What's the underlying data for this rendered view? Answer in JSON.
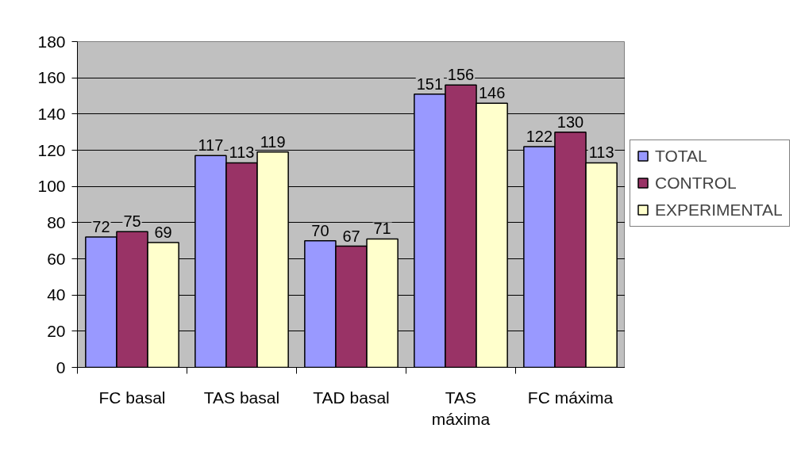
{
  "chart_data": {
    "type": "bar",
    "categories": [
      "FC basal",
      "TAS basal",
      "TAD basal",
      "TAS máxima",
      "FC máxima"
    ],
    "series": [
      {
        "name": "TOTAL",
        "color": "#9999ff",
        "values": [
          72,
          117,
          70,
          151,
          122
        ]
      },
      {
        "name": "CONTROL",
        "color": "#993366",
        "values": [
          75,
          113,
          67,
          156,
          130
        ]
      },
      {
        "name": "EXPERIMENTAL",
        "color": "#ffffcc",
        "values": [
          69,
          119,
          71,
          146,
          113
        ]
      }
    ],
    "ylim": [
      0,
      180
    ],
    "yticks": [
      0,
      20,
      40,
      60,
      80,
      100,
      120,
      140,
      160,
      180
    ],
    "grid": "y",
    "legend": "right",
    "data_labels": true
  }
}
